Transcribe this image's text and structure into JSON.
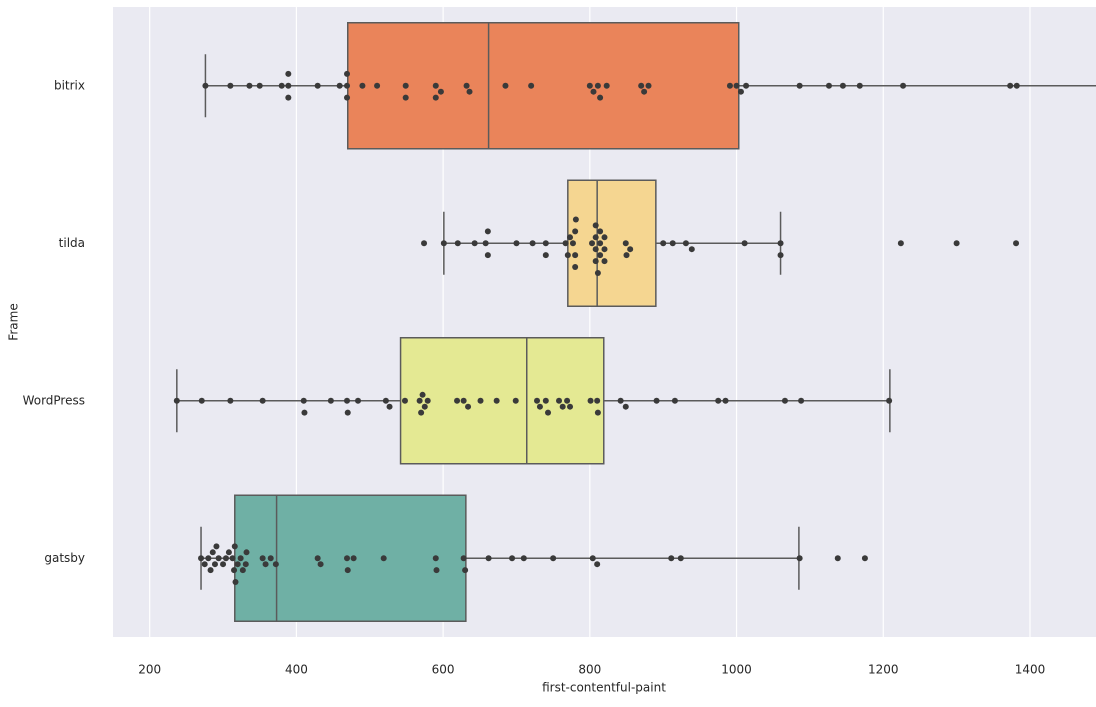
{
  "chart_data": {
    "type": "box",
    "xlabel": "first-contentful-paint",
    "ylabel": "Frame",
    "categories": [
      "bitrix",
      "tilda",
      "WordPress",
      "gatsby"
    ],
    "colors": [
      "#ea845a",
      "#f5d691",
      "#e4e993",
      "#6fb0a5"
    ],
    "stats": [
      {
        "low": 276,
        "q1": 470,
        "median": 662,
        "q3": 1003,
        "high": 1520
      },
      {
        "low": 601,
        "q1": 770,
        "median": 810,
        "q3": 890,
        "high": 1060
      },
      {
        "low": 237,
        "q1": 542,
        "median": 714,
        "q3": 819,
        "high": 1209
      },
      {
        "low": 270,
        "q1": 316,
        "median": 373,
        "q3": 631,
        "high": 1085
      }
    ],
    "points": [
      [
        276,
        310,
        336,
        350,
        380,
        389,
        389,
        389,
        429,
        459,
        469,
        469,
        469,
        490,
        510,
        549,
        549,
        590,
        590,
        597,
        632,
        636,
        685,
        720,
        800,
        805,
        811,
        814,
        823,
        870,
        874,
        880,
        991,
        1000,
        1006,
        1013,
        1086,
        1126,
        1145,
        1168,
        1227,
        1373,
        1382
      ],
      [
        574,
        601,
        620,
        643,
        658,
        661,
        661,
        700,
        722,
        740,
        740,
        767,
        770,
        773,
        777,
        780,
        780,
        780,
        781,
        803,
        808,
        808,
        808,
        808,
        811,
        814,
        814,
        814,
        820,
        820,
        820,
        849,
        850,
        855,
        900,
        913,
        931,
        939,
        1011,
        1060,
        1060,
        1224,
        1300,
        1381
      ],
      [
        237,
        271,
        310,
        354,
        410,
        411,
        447,
        469,
        470,
        484,
        522,
        527,
        548,
        568,
        570,
        572,
        575,
        579,
        619,
        628,
        634,
        651,
        673,
        699,
        728,
        732,
        740,
        743,
        758,
        763,
        769,
        773,
        801,
        810,
        811,
        842,
        849,
        891,
        916,
        975,
        985,
        1066,
        1088,
        1208
      ],
      [
        270,
        275,
        280,
        283,
        286,
        289,
        291,
        294,
        300,
        304,
        308,
        313,
        315,
        316,
        317,
        320,
        324,
        327,
        331,
        332,
        354,
        358,
        365,
        372,
        429,
        433,
        469,
        470,
        478,
        519,
        590,
        591,
        628,
        630,
        662,
        694,
        710,
        750,
        804,
        810,
        911,
        924,
        1086,
        1138,
        1175
      ]
    ],
    "xlim": [
      150,
      1490
    ],
    "xticks": [
      200,
      400,
      600,
      800,
      1000,
      1200,
      1400
    ],
    "grid": true
  }
}
